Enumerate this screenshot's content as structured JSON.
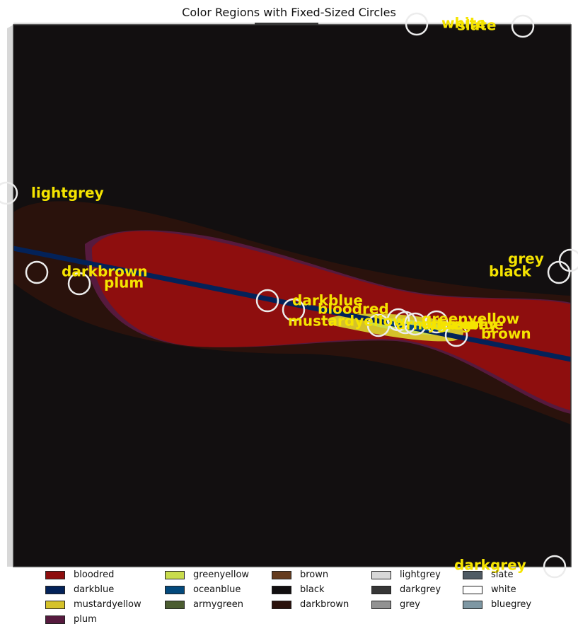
{
  "chart_data": {
    "type": "heatmap",
    "title": "Color Regions with Fixed-Sized Circles",
    "xlabel": "",
    "ylabel": "",
    "grid": false,
    "legend_placement": "bottom",
    "colors": {
      "bloodred": "#8e0e0e",
      "darkblue": "#032259",
      "mustardyellow": "#d5c22a",
      "plum": "#561a3e",
      "greenyellow": "#c9dc4c",
      "oceanblue": "#03497c",
      "armygreen": "#4b5d31",
      "brown": "#653c1f",
      "black": "#120f10",
      "darkbrown": "#2a120c",
      "lightgrey": "#d8d8d8",
      "darkgrey": "#363636",
      "grey": "#929292",
      "slate": "#4f5b64",
      "white": "#ffffff",
      "bluegrey": "#7e97a3"
    },
    "legend": [
      "bloodred",
      "darkblue",
      "mustardyellow",
      "plum",
      "greenyellow",
      "oceanblue",
      "armygreen",
      "brown",
      "black",
      "darkbrown",
      "lightgrey",
      "darkgrey",
      "grey",
      "slate",
      "white",
      "bluegrey"
    ],
    "label_color": "#f5e400",
    "circle_color": "#ececec",
    "circle_labels": [
      {
        "name": "white"
      },
      {
        "name": "slate"
      },
      {
        "name": "lightgrey"
      },
      {
        "name": "grey"
      },
      {
        "name": "black"
      },
      {
        "name": "darkbrown"
      },
      {
        "name": "plum"
      },
      {
        "name": "darkblue"
      },
      {
        "name": "bloodred"
      },
      {
        "name": "mustardyellow"
      },
      {
        "name": "greenyellow"
      },
      {
        "name": "oceanblue"
      },
      {
        "name": "armygreen"
      },
      {
        "name": "bluegrey"
      },
      {
        "name": "brown"
      },
      {
        "name": "darkgrey"
      }
    ]
  }
}
